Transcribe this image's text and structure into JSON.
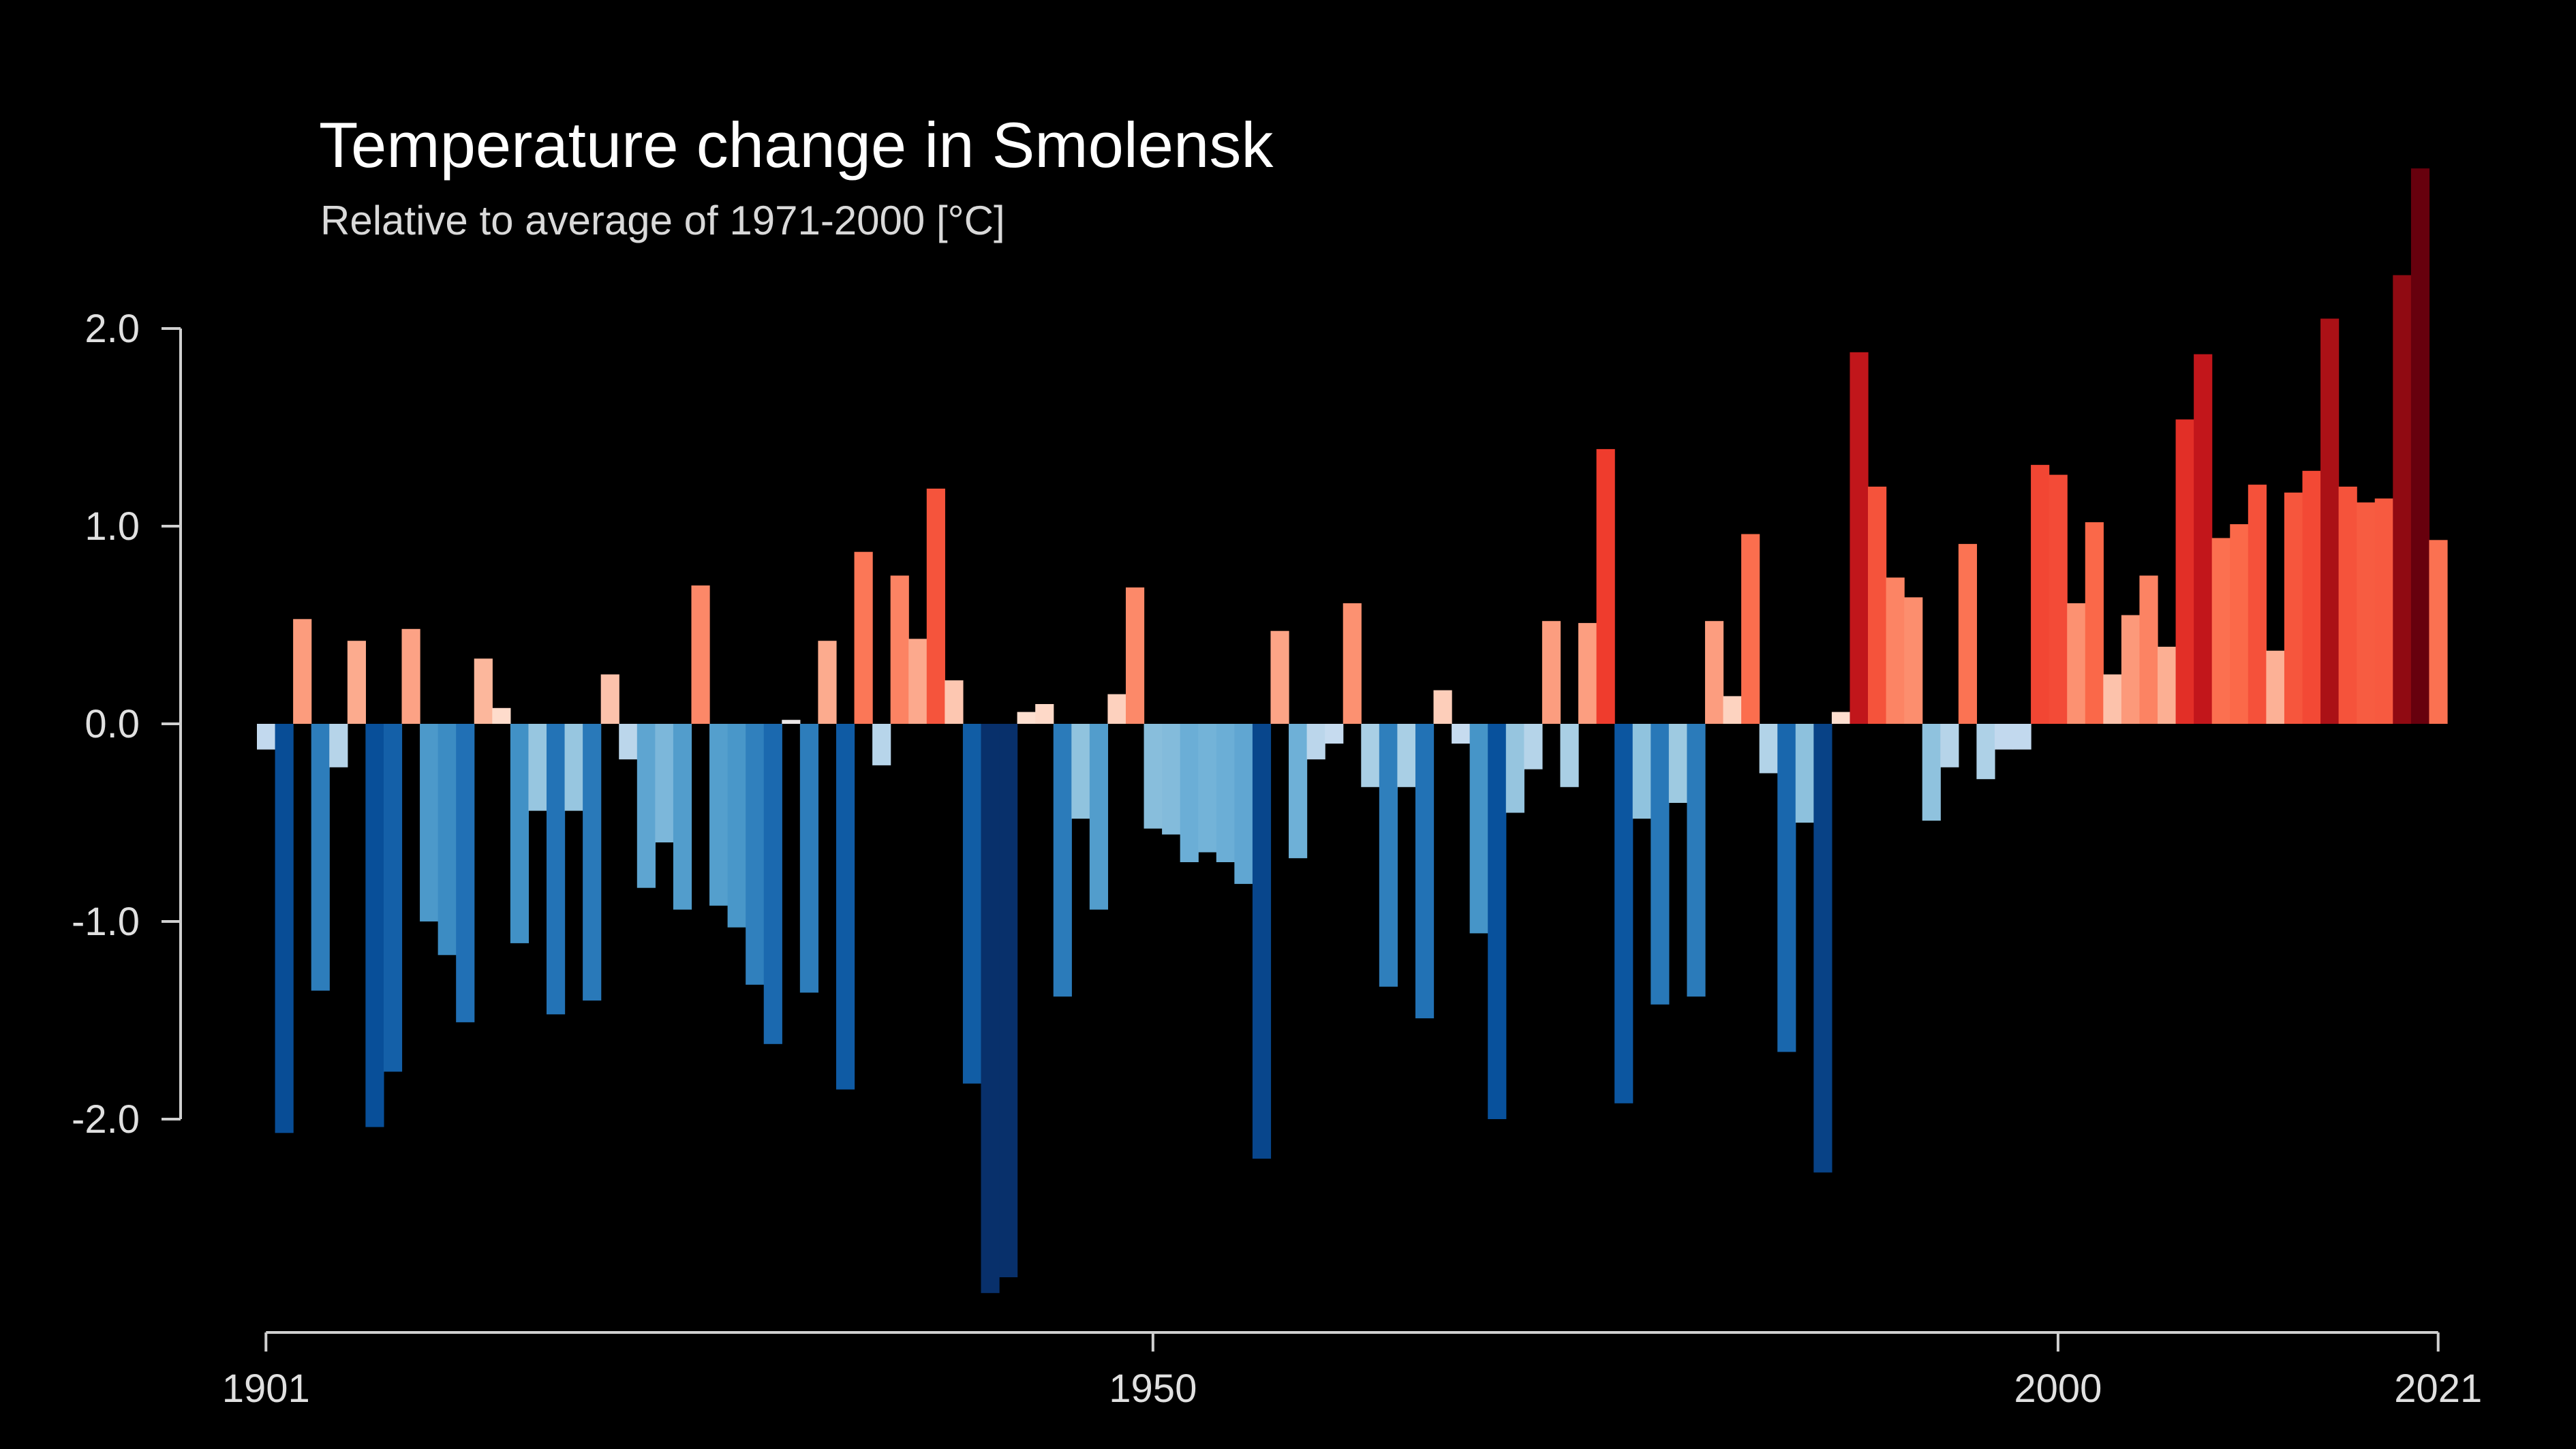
{
  "chart_data": {
    "type": "bar",
    "title": "Temperature change in Smolensk",
    "subtitle": "Relative to average of 1971-2000  [°C]",
    "x_start": 1901,
    "x_end": 2021,
    "ylim": [
      -3.1,
      2.6
    ],
    "y_ticks": [
      2.0,
      1.0,
      0.0,
      -1.0,
      -2.0
    ],
    "y_tick_labels": [
      "2.0",
      "1.0",
      "0.0",
      "-1.0",
      "-2.0"
    ],
    "x_ticks": [
      1901,
      1950,
      2000,
      2021
    ],
    "x_tick_labels": [
      "1901",
      "1950",
      "2000",
      "2021"
    ],
    "grid": false,
    "legend": false,
    "values": [
      -0.13,
      -2.07,
      0.53,
      -1.35,
      -0.22,
      0.42,
      -2.04,
      -1.76,
      0.48,
      -1.0,
      -1.17,
      -1.51,
      0.33,
      0.08,
      -1.11,
      -0.44,
      -1.47,
      -0.44,
      -1.4,
      0.25,
      -0.18,
      -0.83,
      -0.6,
      -0.94,
      0.7,
      -0.92,
      -1.03,
      -1.32,
      -1.62,
      0.02,
      -1.36,
      0.42,
      -1.85,
      0.87,
      -0.21,
      0.75,
      0.43,
      1.19,
      0.22,
      -1.82,
      -2.88,
      -2.8,
      0.06,
      0.1,
      -1.38,
      -0.48,
      -0.94,
      0.15,
      0.69,
      -0.53,
      -0.56,
      -0.7,
      -0.65,
      -0.7,
      -0.81,
      -2.2,
      0.47,
      -0.68,
      -0.18,
      -0.1,
      0.61,
      -0.32,
      -1.33,
      -0.32,
      -1.49,
      0.17,
      -0.1,
      -1.06,
      -2.0,
      -0.45,
      -0.23,
      0.52,
      -0.32,
      0.51,
      1.39,
      -1.92,
      -0.48,
      -1.42,
      -0.4,
      -1.38,
      0.52,
      0.14,
      0.96,
      -0.25,
      -1.66,
      -0.5,
      -2.27,
      0.06,
      1.88,
      1.2,
      0.74,
      0.64,
      -0.49,
      -0.22,
      0.91,
      -0.28,
      -0.13,
      -0.13,
      1.31,
      1.26,
      0.61,
      1.02,
      0.25,
      0.55,
      0.75,
      0.39,
      1.54,
      1.87,
      0.94,
      1.01,
      1.21,
      0.37,
      1.17,
      1.28,
      2.05,
      1.2,
      1.12,
      1.14,
      2.27,
      2.81,
      0.93
    ]
  }
}
